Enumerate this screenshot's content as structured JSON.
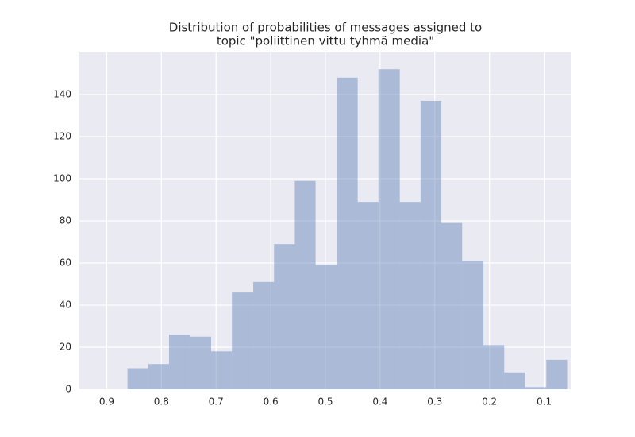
{
  "chart_data": {
    "type": "histogram",
    "title": [
      "Distribution of probabilities of messages assigned to",
      "topic \"poliittinen vittu tyhmä media\""
    ],
    "bins": [
      0.058,
      0.096,
      0.135,
      0.173,
      0.211,
      0.25,
      0.288,
      0.326,
      0.364,
      0.403,
      0.441,
      0.479,
      0.518,
      0.556,
      0.594,
      0.632,
      0.671,
      0.709,
      0.747,
      0.786,
      0.824,
      0.862
    ],
    "values": [
      14,
      1,
      8,
      21,
      61,
      79,
      137,
      89,
      152,
      89,
      148,
      59,
      99,
      69,
      51,
      46,
      18,
      25,
      26,
      12,
      10
    ],
    "color": "#4c72b0",
    "alpha": 0.4,
    "xlim": [
      0.95,
      0.05
    ],
    "xticks": [
      0.9,
      0.8,
      0.7,
      0.6,
      0.5,
      0.4,
      0.3,
      0.2,
      0.1
    ],
    "ylim": [
      0,
      160
    ],
    "yticks": [
      0,
      20,
      40,
      60,
      80,
      100,
      120,
      140
    ],
    "grid": true
  }
}
